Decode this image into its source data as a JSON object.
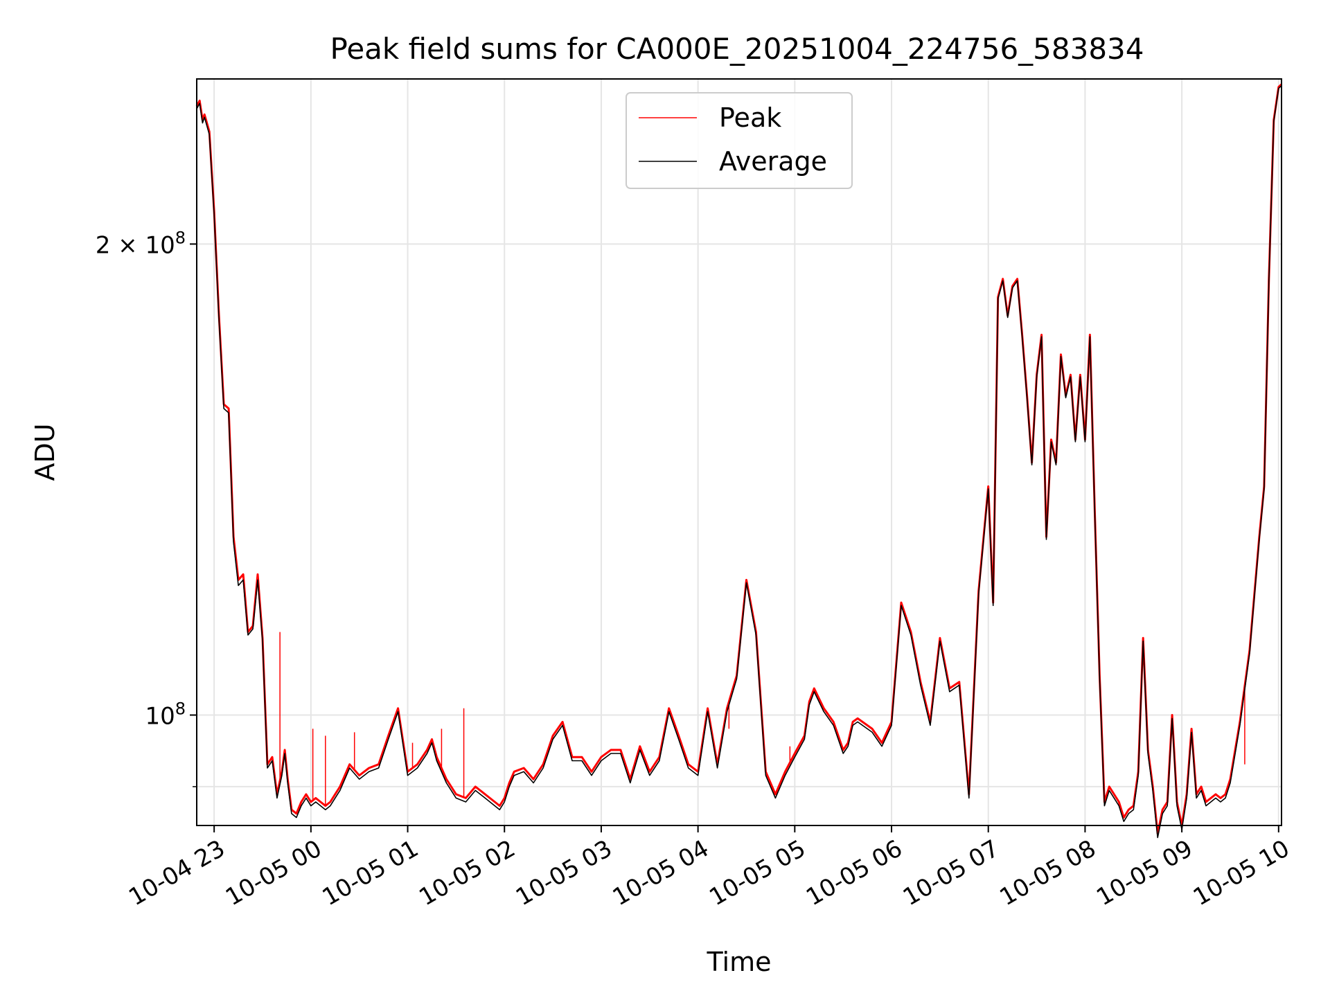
{
  "chart_data": {
    "type": "line",
    "title": "Peak field sums for CA000E_20251004_224756_583834",
    "xlabel": "Time",
    "ylabel": "ADU",
    "y_scale": "log",
    "x_unit": "hours since 10-04 23:00",
    "xlim": [
      -0.18,
      11.03
    ],
    "ylim": [
      85000000,
      255000000
    ],
    "grid": true,
    "legend_position": "top-center",
    "x_ticks": [
      {
        "x": 0,
        "label": "10-04 23"
      },
      {
        "x": 1,
        "label": "10-05 00"
      },
      {
        "x": 2,
        "label": "10-05 01"
      },
      {
        "x": 3,
        "label": "10-05 02"
      },
      {
        "x": 4,
        "label": "10-05 03"
      },
      {
        "x": 5,
        "label": "10-05 04"
      },
      {
        "x": 6,
        "label": "10-05 05"
      },
      {
        "x": 7,
        "label": "10-05 06"
      },
      {
        "x": 8,
        "label": "10-05 07"
      },
      {
        "x": 9,
        "label": "10-05 08"
      },
      {
        "x": 10,
        "label": "10-05 09"
      },
      {
        "x": 11,
        "label": "10-05 10"
      }
    ],
    "y_major_ticks": [
      {
        "y": 100000000,
        "base": "10",
        "exp": "8",
        "coef": ""
      },
      {
        "y": 200000000,
        "base": "10",
        "exp": "8",
        "coef": "2 × "
      }
    ],
    "y_minor_ticks": [
      90000000
    ],
    "series": [
      {
        "name": "Peak",
        "color": "#ff0000",
        "x": [
          -0.18,
          -0.15,
          -0.12,
          -0.1,
          -0.05,
          0.0,
          0.05,
          0.1,
          0.15,
          0.2,
          0.25,
          0.3,
          0.35,
          0.4,
          0.45,
          0.5,
          0.55,
          0.6,
          0.65,
          0.7,
          0.73,
          0.76,
          0.8,
          0.85,
          0.9,
          0.95,
          1.0,
          1.05,
          1.1,
          1.15,
          1.2,
          1.25,
          1.3,
          1.4,
          1.5,
          1.6,
          1.7,
          1.8,
          1.9,
          2.0,
          2.1,
          2.15,
          2.2,
          2.25,
          2.3,
          2.4,
          2.5,
          2.6,
          2.7,
          2.8,
          2.9,
          2.95,
          3.0,
          3.05,
          3.1,
          3.2,
          3.3,
          3.4,
          3.5,
          3.6,
          3.7,
          3.8,
          3.9,
          4.0,
          4.1,
          4.2,
          4.3,
          4.4,
          4.5,
          4.6,
          4.7,
          4.8,
          4.9,
          5.0,
          5.1,
          5.2,
          5.3,
          5.4,
          5.5,
          5.6,
          5.7,
          5.8,
          5.9,
          6.0,
          6.1,
          6.15,
          6.2,
          6.3,
          6.4,
          6.5,
          6.55,
          6.6,
          6.65,
          6.7,
          6.8,
          6.9,
          7.0,
          7.1,
          7.2,
          7.3,
          7.4,
          7.5,
          7.6,
          7.7,
          7.8,
          7.9,
          8.0,
          8.05,
          8.1,
          8.15,
          8.2,
          8.25,
          8.3,
          8.35,
          8.4,
          8.45,
          8.5,
          8.55,
          8.6,
          8.65,
          8.7,
          8.75,
          8.8,
          8.85,
          8.9,
          8.95,
          9.0,
          9.05,
          9.1,
          9.15,
          9.2,
          9.25,
          9.3,
          9.35,
          9.4,
          9.45,
          9.5,
          9.55,
          9.6,
          9.65,
          9.7,
          9.75,
          9.8,
          9.85,
          9.9,
          9.95,
          10.0,
          10.05,
          10.1,
          10.15,
          10.2,
          10.25,
          10.3,
          10.35,
          10.4,
          10.45,
          10.5,
          10.6,
          10.7,
          10.8,
          10.85,
          10.9,
          10.95,
          11.0,
          11.03
        ],
        "y": [
          245000000,
          247000000,
          240000000,
          242000000,
          236000000,
          210000000,
          180000000,
          158000000,
          157000000,
          130000000,
          122000000,
          123000000,
          113000000,
          114000000,
          123000000,
          112000000,
          93000000,
          94000000,
          89000000,
          92000000,
          95000000,
          91000000,
          87000000,
          86500000,
          88000000,
          89000000,
          88000000,
          88500000,
          88000000,
          87500000,
          88000000,
          89000000,
          90000000,
          93000000,
          91500000,
          92500000,
          93000000,
          97000000,
          101000000,
          92000000,
          93000000,
          94000000,
          95000000,
          96500000,
          94000000,
          91000000,
          89000000,
          88500000,
          90000000,
          89000000,
          88000000,
          87500000,
          88500000,
          90500000,
          92000000,
          92500000,
          91000000,
          93000000,
          97000000,
          99000000,
          94000000,
          94000000,
          92000000,
          94000000,
          95000000,
          95000000,
          91000000,
          95500000,
          92000000,
          94000000,
          101000000,
          97000000,
          93000000,
          92000000,
          101000000,
          93000000,
          101000000,
          106000000,
          122000000,
          113000000,
          92000000,
          89000000,
          92000000,
          94500000,
          97000000,
          102000000,
          104000000,
          101000000,
          99000000,
          95000000,
          96000000,
          99000000,
          99500000,
          99000000,
          98000000,
          96000000,
          99000000,
          118000000,
          113000000,
          105000000,
          99000000,
          112000000,
          104000000,
          105000000,
          89000000,
          120000000,
          140000000,
          118000000,
          185000000,
          190000000,
          180000000,
          188000000,
          190000000,
          175000000,
          160000000,
          145000000,
          165000000,
          175000000,
          130000000,
          150000000,
          145000000,
          170000000,
          160000000,
          165000000,
          150000000,
          165000000,
          150000000,
          175000000,
          135000000,
          106000000,
          88000000,
          90000000,
          89000000,
          88000000,
          86000000,
          87000000,
          87500000,
          92000000,
          112000000,
          95000000,
          90000000,
          84000000,
          87000000,
          88000000,
          100000000,
          88000000,
          85000000,
          89000000,
          98000000,
          89000000,
          90000000,
          88000000,
          88500000,
          89000000,
          88500000,
          89000000,
          91000000,
          99000000,
          110000000,
          130000000,
          140000000,
          190000000,
          240000000,
          252000000,
          253000000
        ]
      },
      {
        "name": "Average",
        "color": "#000000",
        "x": [
          -0.18,
          -0.15,
          -0.12,
          -0.1,
          -0.05,
          0.0,
          0.05,
          0.1,
          0.15,
          0.2,
          0.25,
          0.3,
          0.35,
          0.4,
          0.45,
          0.5,
          0.55,
          0.6,
          0.65,
          0.7,
          0.73,
          0.76,
          0.8,
          0.85,
          0.9,
          0.95,
          1.0,
          1.05,
          1.1,
          1.15,
          1.2,
          1.25,
          1.3,
          1.4,
          1.5,
          1.6,
          1.7,
          1.8,
          1.9,
          2.0,
          2.1,
          2.15,
          2.2,
          2.25,
          2.3,
          2.4,
          2.5,
          2.6,
          2.7,
          2.8,
          2.9,
          2.95,
          3.0,
          3.05,
          3.1,
          3.2,
          3.3,
          3.4,
          3.5,
          3.6,
          3.7,
          3.8,
          3.9,
          4.0,
          4.1,
          4.2,
          4.3,
          4.4,
          4.5,
          4.6,
          4.7,
          4.8,
          4.9,
          5.0,
          5.1,
          5.2,
          5.3,
          5.4,
          5.5,
          5.6,
          5.7,
          5.8,
          5.9,
          6.0,
          6.1,
          6.15,
          6.2,
          6.3,
          6.4,
          6.5,
          6.55,
          6.6,
          6.65,
          6.7,
          6.8,
          6.9,
          7.0,
          7.1,
          7.2,
          7.3,
          7.4,
          7.5,
          7.6,
          7.7,
          7.8,
          7.9,
          8.0,
          8.05,
          8.1,
          8.15,
          8.2,
          8.25,
          8.3,
          8.35,
          8.4,
          8.45,
          8.5,
          8.55,
          8.6,
          8.65,
          8.7,
          8.75,
          8.8,
          8.85,
          8.9,
          8.95,
          9.0,
          9.05,
          9.1,
          9.15,
          9.2,
          9.25,
          9.3,
          9.35,
          9.4,
          9.45,
          9.5,
          9.55,
          9.6,
          9.65,
          9.7,
          9.75,
          9.8,
          9.85,
          9.9,
          9.95,
          10.0,
          10.05,
          10.1,
          10.15,
          10.2,
          10.25,
          10.3,
          10.35,
          10.4,
          10.45,
          10.5,
          10.6,
          10.7,
          10.8,
          10.85,
          10.9,
          10.95,
          11.0,
          11.03
        ],
        "y": [
          244000000,
          246000000,
          239000000,
          241000000,
          235000000,
          209000000,
          179000000,
          157000000,
          156000000,
          129000000,
          121000000,
          122000000,
          112500000,
          113500000,
          122000000,
          111500000,
          92500000,
          93500000,
          88500000,
          91500000,
          94500000,
          90500000,
          86500000,
          86000000,
          87500000,
          88500000,
          87500000,
          88000000,
          87500000,
          87000000,
          87500000,
          88500000,
          89500000,
          92500000,
          91000000,
          92000000,
          92500000,
          96500000,
          100500000,
          91500000,
          92500000,
          93500000,
          94500000,
          96000000,
          93500000,
          90500000,
          88500000,
          88000000,
          89500000,
          88500000,
          87500000,
          87000000,
          88000000,
          90000000,
          91500000,
          92000000,
          90500000,
          92500000,
          96500000,
          98500000,
          93500000,
          93500000,
          91500000,
          93500000,
          94500000,
          94500000,
          90500000,
          95000000,
          91500000,
          93500000,
          100500000,
          96500000,
          92500000,
          91500000,
          100500000,
          92500000,
          100500000,
          105500000,
          121500000,
          112500000,
          91500000,
          88500000,
          91500000,
          94000000,
          96500000,
          101500000,
          103500000,
          100500000,
          98500000,
          94500000,
          95500000,
          98500000,
          99000000,
          98500000,
          97500000,
          95500000,
          98500000,
          117500000,
          112500000,
          104500000,
          98500000,
          111500000,
          103500000,
          104500000,
          88500000,
          119500000,
          139500000,
          117500000,
          184500000,
          189500000,
          179500000,
          187500000,
          189500000,
          174500000,
          159500000,
          144500000,
          164500000,
          174500000,
          129500000,
          149500000,
          144500000,
          169500000,
          159500000,
          164500000,
          149500000,
          164500000,
          149500000,
          174500000,
          134500000,
          105500000,
          87500000,
          89500000,
          88500000,
          87500000,
          85500000,
          86500000,
          87000000,
          91500000,
          111500000,
          94500000,
          89500000,
          83500000,
          86500000,
          87500000,
          99500000,
          87500000,
          84500000,
          88500000,
          97500000,
          88500000,
          89500000,
          87500000,
          88000000,
          88500000,
          88000000,
          88500000,
          90500000,
          98500000,
          109500000,
          129500000,
          139500000,
          189500000,
          239500000,
          251500000,
          252500000
        ]
      }
    ],
    "spikes": [
      {
        "x": 0.68,
        "y": 113000000
      },
      {
        "x": 1.02,
        "y": 98000000
      },
      {
        "x": 1.15,
        "y": 97000000
      },
      {
        "x": 1.45,
        "y": 97500000
      },
      {
        "x": 2.05,
        "y": 96000000
      },
      {
        "x": 2.35,
        "y": 98000000
      },
      {
        "x": 2.58,
        "y": 101000000
      },
      {
        "x": 5.32,
        "y": 98000000
      },
      {
        "x": 5.95,
        "y": 95500000
      },
      {
        "x": 10.65,
        "y": 93000000
      }
    ]
  }
}
